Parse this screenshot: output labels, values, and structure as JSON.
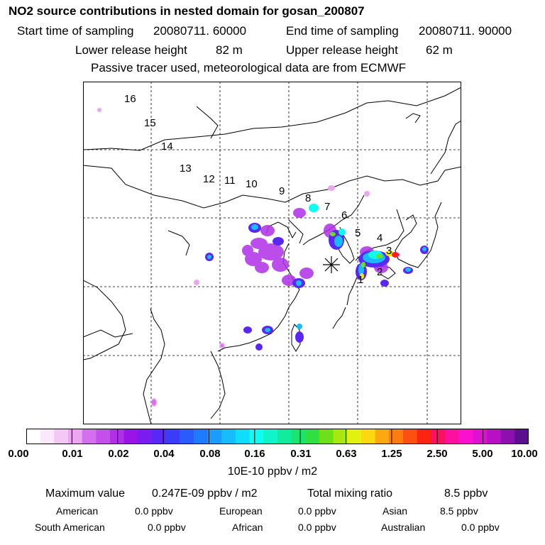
{
  "header": {
    "title": "NO2 source contributions in nested domain for gosan_200807",
    "start_label": "Start time of sampling",
    "start_value": "20080711. 60000",
    "end_label": "End time of sampling",
    "end_value": "20080711. 90000",
    "lower_label": "Lower release height",
    "lower_value": "82 m",
    "upper_label": "Upper release height",
    "upper_value": "62 m",
    "note": "Passive tracer used, meteorological data are from ECMWF"
  },
  "map": {
    "trajectory_labels": [
      "16",
      "15",
      "14",
      "13",
      "12",
      "11",
      "10",
      "9",
      "8",
      "7",
      "6",
      "5",
      "4",
      "3",
      "2",
      "1"
    ],
    "receptor_marker": "asterisk-icon"
  },
  "colorbar": {
    "tick_labels": [
      "0.00",
      "0.01",
      "0.02",
      "0.04",
      "0.08",
      "0.16",
      "0.31",
      "0.63",
      "1.25",
      "2.50",
      "5.00",
      "10.00"
    ],
    "colors": [
      "#ffffff",
      "#fbe8fb",
      "#f4c8f4",
      "#eca6f0",
      "#d470f0",
      "#c450ec",
      "#b030e8",
      "#9a14e8",
      "#7a1cf0",
      "#5a28f4",
      "#3a3cf8",
      "#2a5cfc",
      "#1c7cfc",
      "#1c9cfc",
      "#18bcfc",
      "#10dcfc",
      "#10fcf0",
      "#10f4c8",
      "#10ec9c",
      "#18e470",
      "#30e040",
      "#6ce018",
      "#a8e810",
      "#e4f010",
      "#fcd810",
      "#fca810",
      "#fc7c10",
      "#fc5010",
      "#fc2410",
      "#fc1060",
      "#fc10a0",
      "#fc10d0",
      "#e010d0",
      "#b810c4",
      "#8c10b0",
      "#5c1090"
    ],
    "unit": "10E-10 ppbv / m2"
  },
  "stats": {
    "max_label": "Maximum value",
    "max_value": "0.247E-09 ppbv / m2",
    "total_label": "Total mixing ratio",
    "total_value": "8.5 ppbv",
    "regions": [
      {
        "name": "American",
        "value": "0.0 ppbv"
      },
      {
        "name": "European",
        "value": "0.0 ppbv"
      },
      {
        "name": "Asian",
        "value": "8.5 ppbv"
      },
      {
        "name": "South American",
        "value": "0.0 ppbv"
      },
      {
        "name": "African",
        "value": "0.0 ppbv"
      },
      {
        "name": "Australian",
        "value": "0.0 ppbv"
      }
    ]
  }
}
